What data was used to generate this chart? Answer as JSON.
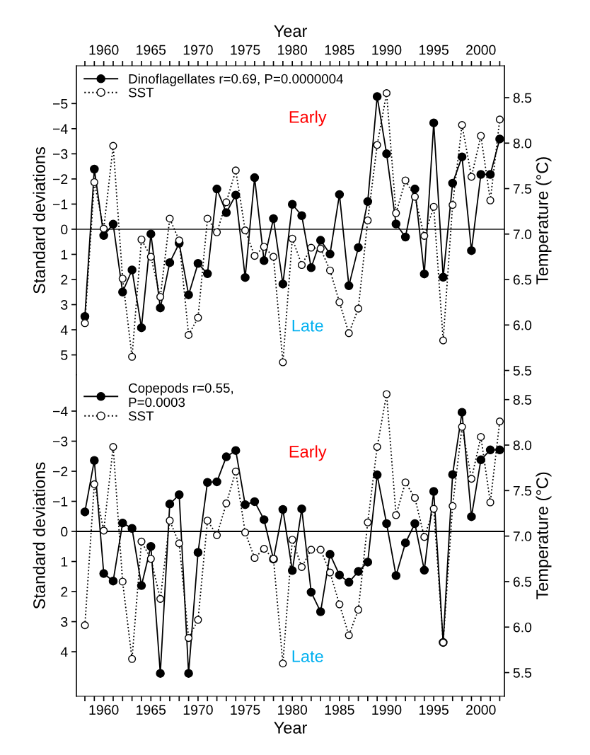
{
  "chart_data": [
    {
      "type": "line",
      "xlabel": "Year",
      "ylabel": "Standard deviations",
      "y2label": "Temperature (°C)",
      "x": [
        1958,
        1959,
        1960,
        1961,
        1962,
        1963,
        1964,
        1965,
        1966,
        1967,
        1968,
        1969,
        1970,
        1971,
        1972,
        1973,
        1974,
        1975,
        1976,
        1977,
        1978,
        1979,
        1980,
        1981,
        1982,
        1983,
        1984,
        1985,
        1986,
        1987,
        1988,
        1989,
        1990,
        1991,
        1992,
        1993,
        1994,
        1995,
        1996,
        1997,
        1998,
        1999,
        2000,
        2001,
        2002
      ],
      "series": [
        {
          "name": "Dinoflagellates r=0.69, P=0.0000004",
          "color": "#000000",
          "line_style": "solid",
          "values": [
            3.47,
            -2.39,
            0.25,
            -0.2,
            2.5,
            1.62,
            3.92,
            0.19,
            3.13,
            1.33,
            0.56,
            2.61,
            1.36,
            1.77,
            -1.6,
            -0.66,
            -1.36,
            1.92,
            -2.05,
            1.25,
            -0.42,
            2.18,
            -0.99,
            -0.54,
            1.53,
            0.44,
            0.99,
            -1.38,
            2.25,
            0.73,
            -1.1,
            -5.28,
            -3.0,
            -0.21,
            0.31,
            -1.6,
            1.78,
            -4.23,
            1.91,
            -1.83,
            -2.88,
            0.85,
            -2.18,
            -2.18,
            -3.59
          ]
        },
        {
          "name": "SST",
          "color": "#000000",
          "line_style": "dotted",
          "axis": "y2",
          "values": [
            6.02,
            7.57,
            7.06,
            7.97,
            6.51,
            5.65,
            6.94,
            6.75,
            6.31,
            7.17,
            6.93,
            5.89,
            6.08,
            7.17,
            7.02,
            7.35,
            7.7,
            7.04,
            6.76,
            6.86,
            6.75,
            5.59,
            6.95,
            6.66,
            6.85,
            6.84,
            6.6,
            6.25,
            5.91,
            6.18,
            7.15,
            7.98,
            8.55,
            7.23,
            7.59,
            7.41,
            6.98,
            7.3,
            5.83,
            7.32,
            8.2,
            7.63,
            8.08,
            7.37,
            8.26
          ]
        }
      ],
      "xlim": [
        1957.1,
        2002.5
      ],
      "xticks": [
        {
          "value": 1958,
          "label": null
        },
        {
          "value": 1959,
          "label": null
        },
        1960,
        {
          "value": 1961,
          "label": null
        },
        {
          "value": 1962,
          "label": null
        },
        {
          "value": 1963,
          "label": null
        },
        {
          "value": 1964,
          "label": null
        },
        1965,
        {
          "value": 1966,
          "label": null
        },
        {
          "value": 1967,
          "label": null
        },
        {
          "value": 1968,
          "label": null
        },
        {
          "value": 1969,
          "label": null
        },
        1970,
        {
          "value": 1971,
          "label": null
        },
        {
          "value": 1972,
          "label": null
        },
        {
          "value": 1973,
          "label": null
        },
        {
          "value": 1974,
          "label": null
        },
        1975,
        {
          "value": 1976,
          "label": null
        },
        {
          "value": 1977,
          "label": null
        },
        {
          "value": 1978,
          "label": null
        },
        {
          "value": 1979,
          "label": null
        },
        1980,
        {
          "value": 1981,
          "label": null
        },
        {
          "value": 1982,
          "label": null
        },
        {
          "value": 1983,
          "label": null
        },
        {
          "value": 1984,
          "label": null
        },
        1985,
        {
          "value": 1986,
          "label": null
        },
        {
          "value": 1987,
          "label": null
        },
        {
          "value": 1988,
          "label": null
        },
        {
          "value": 1989,
          "label": null
        },
        1990,
        {
          "value": 1991,
          "label": null
        },
        {
          "value": 1992,
          "label": null
        },
        {
          "value": 1993,
          "label": null
        },
        {
          "value": 1994,
          "label": null
        },
        1995,
        {
          "value": 1996,
          "label": null
        },
        {
          "value": 1997,
          "label": null
        },
        {
          "value": 1998,
          "label": null
        },
        {
          "value": 1999,
          "label": null
        },
        2000,
        {
          "value": 2001,
          "label": null
        },
        {
          "value": 2002,
          "label": null
        }
      ],
      "ylim": [
        5.8,
        -6.5
      ],
      "yticks": [
        {
          "value": -5,
          "label": "−5"
        },
        {
          "value": -4,
          "label": "−4"
        },
        {
          "value": -3,
          "label": "−3"
        },
        {
          "value": -2,
          "label": "−2"
        },
        {
          "value": -1,
          "label": "−1"
        },
        0,
        1,
        2,
        3,
        4,
        5
      ],
      "y2lim": [
        5.45,
        8.85
      ],
      "y2ticks": [
        5.5,
        {
          "value": 6,
          "label": "6.0"
        },
        6.5,
        {
          "value": 7,
          "label": "7.0"
        },
        7.5,
        {
          "value": 8,
          "label": "8.0"
        },
        8.5
      ],
      "ref_lines": [
        {
          "axis": "y",
          "value": 0,
          "color": "#555555"
        }
      ],
      "marker": "circle",
      "legend": "top left",
      "grid": false,
      "annotations": [
        "Early",
        "Late"
      ]
    },
    {
      "type": "line",
      "xlabel": "Year",
      "ylabel": "Standard deviations",
      "y2label": "Temperature (°C)",
      "x": [
        1958,
        1959,
        1960,
        1961,
        1962,
        1963,
        1964,
        1965,
        1966,
        1967,
        1968,
        1969,
        1970,
        1971,
        1972,
        1973,
        1974,
        1975,
        1976,
        1977,
        1978,
        1979,
        1980,
        1981,
        1982,
        1983,
        1984,
        1985,
        1986,
        1987,
        1988,
        1989,
        1990,
        1991,
        1992,
        1993,
        1994,
        1995,
        1996,
        1997,
        1998,
        1999,
        2000,
        2001,
        2002
      ],
      "series": [
        {
          "name": "Copepods r=0.55,\nP=0.0003",
          "color": "#000000",
          "line_style": "solid",
          "values": [
            -0.65,
            -2.36,
            1.4,
            1.65,
            -0.28,
            -0.1,
            1.8,
            0.5,
            4.72,
            -0.91,
            -1.22,
            4.72,
            0.7,
            -1.63,
            -1.65,
            -2.48,
            -2.69,
            -0.89,
            -0.99,
            -0.39,
            0.92,
            -0.73,
            1.3,
            -0.75,
            2.02,
            2.67,
            0.76,
            1.45,
            1.69,
            1.33,
            1.02,
            -1.88,
            -0.26,
            1.47,
            0.38,
            -0.26,
            1.29,
            -1.33,
            3.69,
            -1.89,
            -3.96,
            -0.49,
            -2.38,
            -2.71,
            -2.71
          ]
        },
        {
          "name": "SST",
          "color": "#000000",
          "line_style": "dotted",
          "axis": "y2",
          "values": [
            6.02,
            7.57,
            7.06,
            7.98,
            6.5,
            5.65,
            6.94,
            6.75,
            6.31,
            7.17,
            6.92,
            5.88,
            6.08,
            7.17,
            7.01,
            7.36,
            7.71,
            7.04,
            6.76,
            6.86,
            6.75,
            5.6,
            6.96,
            6.66,
            6.85,
            6.85,
            6.6,
            6.25,
            5.91,
            6.19,
            7.15,
            7.98,
            8.56,
            7.23,
            7.59,
            7.42,
            6.99,
            7.3,
            5.83,
            7.33,
            8.2,
            7.63,
            8.09,
            7.37,
            8.26
          ]
        }
      ],
      "xlim": [
        1957.1,
        2002.5
      ],
      "xticks": [
        {
          "value": 1958,
          "label": null
        },
        {
          "value": 1959,
          "label": null
        },
        1960,
        {
          "value": 1961,
          "label": null
        },
        {
          "value": 1962,
          "label": null
        },
        {
          "value": 1963,
          "label": null
        },
        {
          "value": 1964,
          "label": null
        },
        1965,
        {
          "value": 1966,
          "label": null
        },
        {
          "value": 1967,
          "label": null
        },
        {
          "value": 1968,
          "label": null
        },
        {
          "value": 1969,
          "label": null
        },
        1970,
        {
          "value": 1971,
          "label": null
        },
        {
          "value": 1972,
          "label": null
        },
        {
          "value": 1973,
          "label": null
        },
        {
          "value": 1974,
          "label": null
        },
        1975,
        {
          "value": 1976,
          "label": null
        },
        {
          "value": 1977,
          "label": null
        },
        {
          "value": 1978,
          "label": null
        },
        {
          "value": 1979,
          "label": null
        },
        1980,
        {
          "value": 1981,
          "label": null
        },
        {
          "value": 1982,
          "label": null
        },
        {
          "value": 1983,
          "label": null
        },
        {
          "value": 1984,
          "label": null
        },
        1985,
        {
          "value": 1986,
          "label": null
        },
        {
          "value": 1987,
          "label": null
        },
        {
          "value": 1988,
          "label": null
        },
        {
          "value": 1989,
          "label": null
        },
        1990,
        {
          "value": 1991,
          "label": null
        },
        {
          "value": 1992,
          "label": null
        },
        {
          "value": 1993,
          "label": null
        },
        {
          "value": 1994,
          "label": null
        },
        1995,
        {
          "value": 1996,
          "label": null
        },
        {
          "value": 1997,
          "label": null
        },
        {
          "value": 1998,
          "label": null
        },
        {
          "value": 1999,
          "label": null
        },
        2000,
        {
          "value": 2001,
          "label": null
        },
        {
          "value": 2002,
          "label": null
        }
      ],
      "ylim": [
        5.48,
        -5.2
      ],
      "yticks": [
        {
          "value": -4,
          "label": "−4"
        },
        {
          "value": -3,
          "label": "−3"
        },
        {
          "value": -2,
          "label": "−2"
        },
        {
          "value": -1,
          "label": "−1"
        },
        0,
        1,
        2,
        3,
        4
      ],
      "y2lim": [
        5.24,
        8.77
      ],
      "y2ticks": [
        5.5,
        {
          "value": 6,
          "label": "6.0"
        },
        6.5,
        {
          "value": 7,
          "label": "7.0"
        },
        7.5,
        {
          "value": 8,
          "label": "8.0"
        },
        8.5
      ],
      "ref_lines": [
        {
          "axis": "y",
          "value": 0,
          "color": "#000000"
        }
      ],
      "marker": "circle",
      "legend": "top left",
      "grid": false,
      "annotations": [
        "Early",
        "Late"
      ]
    }
  ]
}
